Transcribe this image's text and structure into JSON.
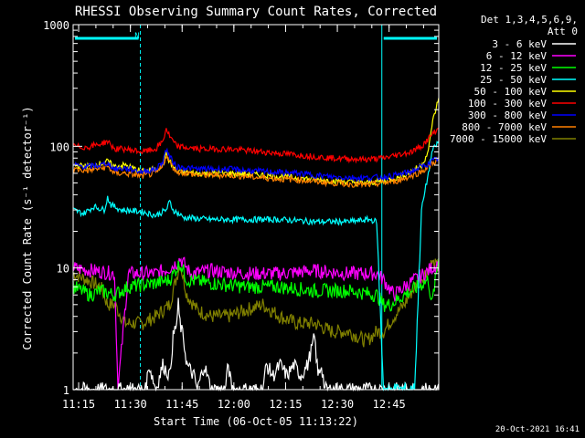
{
  "chart_data": {
    "type": "line",
    "title": "RHESSI Observing Summary Count Rates, Corrected",
    "ylabel": "Corrected Count Rate (s⁻¹ detector⁻¹)",
    "xlabel": "Start Time (06-Oct-05 11:13:22)",
    "y_scale": "log",
    "ylim": [
      1,
      1000
    ],
    "y_ticks": [
      1,
      10,
      100,
      1000
    ],
    "x_ticks": [
      "11:15",
      "11:30",
      "11:45",
      "12:00",
      "12:15",
      "12:30",
      "12:45"
    ],
    "x_range_minutes": [
      0,
      106
    ],
    "x_ticks_minutes": [
      1.6,
      16.6,
      31.6,
      46.6,
      61.6,
      76.6,
      91.6
    ],
    "legend_header": [
      "Det 1,3,4,5,6,9,",
      "Att 0"
    ],
    "legend_position": "right",
    "annotations": {
      "n_marker": "N"
    },
    "night_intervals": [
      [
        0,
        19.5
      ],
      [
        89.5,
        106
      ]
    ],
    "series": [
      {
        "name": "3 - 6 keV",
        "color": "#ffffff",
        "points": [
          [
            0,
            1
          ],
          [
            14,
            1
          ],
          [
            19,
            1
          ],
          [
            21,
            1
          ],
          [
            22,
            1.6
          ],
          [
            24,
            1
          ],
          [
            26,
            1.6
          ],
          [
            28,
            1.3
          ],
          [
            29,
            2.7
          ],
          [
            30,
            3.5
          ],
          [
            30.5,
            5
          ],
          [
            31,
            3.5
          ],
          [
            32,
            2.6
          ],
          [
            33,
            1.6
          ],
          [
            35,
            1.3
          ],
          [
            36,
            1
          ],
          [
            38,
            1.6
          ],
          [
            40,
            1
          ],
          [
            44,
            1
          ],
          [
            45,
            1.6
          ],
          [
            46,
            1
          ],
          [
            55,
            1
          ],
          [
            56,
            1.6
          ],
          [
            58,
            1.3
          ],
          [
            60,
            1.6
          ],
          [
            62,
            1.3
          ],
          [
            64,
            1.6
          ],
          [
            66,
            1.3
          ],
          [
            68,
            1.6
          ],
          [
            70,
            2.7
          ],
          [
            71,
            1.3
          ],
          [
            72,
            1.6
          ],
          [
            73,
            1
          ],
          [
            89,
            1
          ],
          [
            106,
            1
          ]
        ]
      },
      {
        "name": "6 - 12 keV",
        "color": "#ff00ff",
        "points": [
          [
            0,
            10
          ],
          [
            12,
            9
          ],
          [
            13,
            1
          ],
          [
            16,
            9
          ],
          [
            19,
            9
          ],
          [
            24,
            9
          ],
          [
            28,
            10
          ],
          [
            30,
            11
          ],
          [
            31,
            12
          ],
          [
            32,
            11
          ],
          [
            34,
            9
          ],
          [
            40,
            9.5
          ],
          [
            50,
            9
          ],
          [
            60,
            9
          ],
          [
            70,
            9.5
          ],
          [
            80,
            9
          ],
          [
            88,
            9
          ],
          [
            90,
            8
          ],
          [
            93,
            6
          ],
          [
            96,
            7
          ],
          [
            99,
            8
          ],
          [
            102,
            9
          ],
          [
            104,
            10
          ],
          [
            106,
            11
          ]
        ]
      },
      {
        "name": "12 - 25 keV",
        "color": "#00ff00",
        "points": [
          [
            0,
            7
          ],
          [
            5,
            6
          ],
          [
            8,
            6.5
          ],
          [
            12,
            6
          ],
          [
            16,
            7
          ],
          [
            24,
            7.5
          ],
          [
            28,
            8
          ],
          [
            31,
            11
          ],
          [
            33,
            8
          ],
          [
            40,
            7.5
          ],
          [
            50,
            7
          ],
          [
            60,
            7
          ],
          [
            70,
            6.5
          ],
          [
            80,
            6.5
          ],
          [
            88,
            6
          ],
          [
            90,
            5
          ],
          [
            92,
            5
          ],
          [
            96,
            6
          ],
          [
            100,
            7
          ],
          [
            103,
            8
          ],
          [
            104,
            5
          ],
          [
            106,
            12
          ]
        ]
      },
      {
        "name": "25 - 50 keV",
        "color": "#00ffff",
        "points": [
          [
            0,
            30
          ],
          [
            3,
            28
          ],
          [
            6,
            32
          ],
          [
            9,
            30
          ],
          [
            10,
            38
          ],
          [
            11,
            33
          ],
          [
            14,
            30
          ],
          [
            20,
            29
          ],
          [
            24,
            27
          ],
          [
            27,
            30
          ],
          [
            28,
            35
          ],
          [
            29,
            30
          ],
          [
            32,
            26
          ],
          [
            40,
            25
          ],
          [
            50,
            25
          ],
          [
            60,
            25
          ],
          [
            70,
            24
          ],
          [
            80,
            24
          ],
          [
            86,
            25
          ],
          [
            88,
            24
          ],
          [
            90,
            1
          ],
          [
            96,
            1
          ],
          [
            99,
            1
          ],
          [
            101,
            30
          ],
          [
            103,
            60
          ],
          [
            104,
            90
          ],
          [
            106,
            110
          ]
        ]
      },
      {
        "name": "50 - 100 keV",
        "color": "#ffff00",
        "points": [
          [
            0,
            70
          ],
          [
            4,
            68
          ],
          [
            8,
            72
          ],
          [
            10,
            75
          ],
          [
            12,
            68
          ],
          [
            15,
            70
          ],
          [
            20,
            62
          ],
          [
            24,
            65
          ],
          [
            26,
            70
          ],
          [
            27,
            85
          ],
          [
            28,
            75
          ],
          [
            30,
            62
          ],
          [
            36,
            60
          ],
          [
            45,
            60
          ],
          [
            55,
            58
          ],
          [
            65,
            55
          ],
          [
            75,
            52
          ],
          [
            85,
            50
          ],
          [
            90,
            52
          ],
          [
            94,
            55
          ],
          [
            98,
            62
          ],
          [
            101,
            70
          ],
          [
            103,
            90
          ],
          [
            104,
            150
          ],
          [
            106,
            250
          ]
        ]
      },
      {
        "name": "100 - 300 keV",
        "color": "#ff0000",
        "points": [
          [
            0,
            100
          ],
          [
            4,
            98
          ],
          [
            8,
            105
          ],
          [
            10,
            110
          ],
          [
            12,
            95
          ],
          [
            15,
            95
          ],
          [
            20,
            90
          ],
          [
            24,
            95
          ],
          [
            26,
            110
          ],
          [
            27,
            140
          ],
          [
            28,
            120
          ],
          [
            30,
            100
          ],
          [
            36,
            95
          ],
          [
            45,
            95
          ],
          [
            55,
            90
          ],
          [
            65,
            85
          ],
          [
            75,
            80
          ],
          [
            85,
            78
          ],
          [
            90,
            80
          ],
          [
            94,
            85
          ],
          [
            98,
            90
          ],
          [
            101,
            100
          ],
          [
            103,
            115
          ],
          [
            104,
            125
          ],
          [
            106,
            140
          ]
        ]
      },
      {
        "name": "300 - 800 keV",
        "color": "#0000ff",
        "points": [
          [
            0,
            70
          ],
          [
            4,
            68
          ],
          [
            8,
            70
          ],
          [
            10,
            73
          ],
          [
            12,
            65
          ],
          [
            15,
            66
          ],
          [
            20,
            62
          ],
          [
            24,
            65
          ],
          [
            26,
            75
          ],
          [
            27,
            95
          ],
          [
            28,
            82
          ],
          [
            30,
            68
          ],
          [
            36,
            65
          ],
          [
            45,
            65
          ],
          [
            55,
            62
          ],
          [
            65,
            60
          ],
          [
            75,
            56
          ],
          [
            85,
            55
          ],
          [
            90,
            56
          ],
          [
            94,
            58
          ],
          [
            98,
            62
          ],
          [
            101,
            68
          ],
          [
            103,
            72
          ],
          [
            104,
            75
          ],
          [
            106,
            80
          ]
        ]
      },
      {
        "name": "800 - 7000 keV",
        "color": "#ff8000",
        "points": [
          [
            0,
            65
          ],
          [
            4,
            63
          ],
          [
            8,
            66
          ],
          [
            10,
            68
          ],
          [
            12,
            60
          ],
          [
            15,
            60
          ],
          [
            20,
            57
          ],
          [
            24,
            60
          ],
          [
            26,
            68
          ],
          [
            27,
            85
          ],
          [
            28,
            74
          ],
          [
            30,
            62
          ],
          [
            36,
            58
          ],
          [
            45,
            58
          ],
          [
            55,
            55
          ],
          [
            65,
            53
          ],
          [
            75,
            50
          ],
          [
            85,
            48
          ],
          [
            90,
            50
          ],
          [
            94,
            52
          ],
          [
            98,
            57
          ],
          [
            101,
            62
          ],
          [
            103,
            68
          ],
          [
            104,
            72
          ],
          [
            106,
            78
          ]
        ]
      },
      {
        "name": "7000 - 15000 keV",
        "color": "#808000",
        "points": [
          [
            0,
            9
          ],
          [
            4,
            8
          ],
          [
            8,
            7
          ],
          [
            10,
            5
          ],
          [
            12,
            5
          ],
          [
            14,
            4
          ],
          [
            15,
            3.5
          ],
          [
            20,
            3.5
          ],
          [
            24,
            4
          ],
          [
            28,
            5
          ],
          [
            31,
            11
          ],
          [
            33,
            6
          ],
          [
            36,
            4.5
          ],
          [
            40,
            4
          ],
          [
            45,
            4
          ],
          [
            50,
            4.5
          ],
          [
            55,
            5
          ],
          [
            60,
            4
          ],
          [
            65,
            3.5
          ],
          [
            70,
            3.5
          ],
          [
            75,
            3
          ],
          [
            80,
            3
          ],
          [
            85,
            2.5
          ],
          [
            88,
            3
          ],
          [
            90,
            3
          ],
          [
            93,
            4
          ],
          [
            96,
            5
          ],
          [
            99,
            7
          ],
          [
            102,
            9
          ],
          [
            104,
            11
          ],
          [
            106,
            10
          ]
        ]
      }
    ]
  },
  "timestamp": "20-Oct-2021 16:41"
}
